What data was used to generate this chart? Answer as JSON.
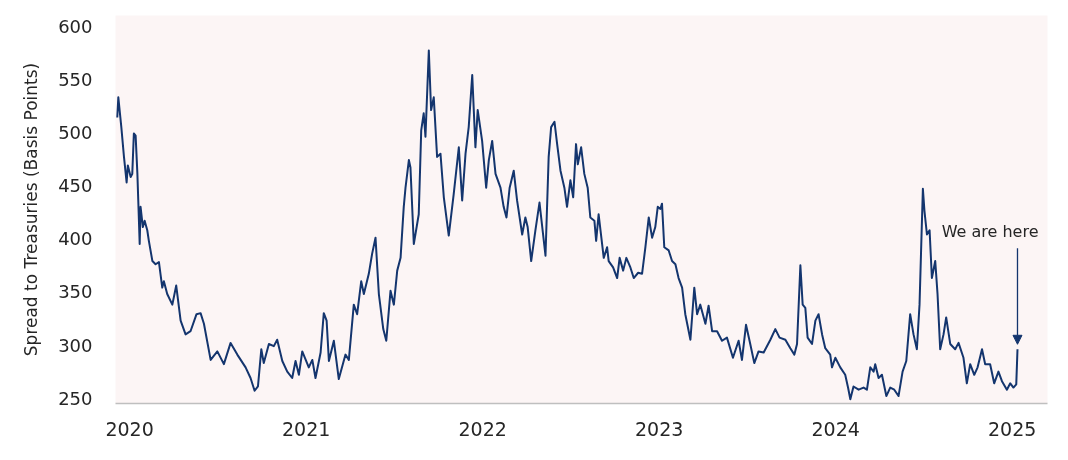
{
  "chart_data": {
    "type": "line",
    "ylabel": "Spread to Treasuries (Basis Points)",
    "x": [
      2019.93,
      2019.936,
      2019.953,
      2019.968,
      2019.983,
      2019.99,
      2020.006,
      2020.015,
      2020.024,
      2020.034,
      2020.044,
      2020.049,
      2020.057,
      2020.062,
      2020.075,
      2020.085,
      2020.1,
      2020.109,
      2020.129,
      2020.147,
      2020.166,
      2020.185,
      2020.194,
      2020.213,
      2020.242,
      2020.264,
      2020.289,
      2020.317,
      2020.345,
      2020.379,
      2020.402,
      2020.421,
      2020.459,
      2020.497,
      2020.534,
      2020.572,
      2020.61,
      2020.657,
      2020.685,
      2020.708,
      2020.727,
      2020.746,
      2020.76,
      2020.789,
      2020.817,
      2020.836,
      2020.865,
      2020.893,
      2020.921,
      2020.94,
      2020.959,
      2020.978,
      2021.015,
      2021.035,
      2021.053,
      2021.082,
      2021.1,
      2021.116,
      2021.129,
      2021.157,
      2021.185,
      2021.223,
      2021.242,
      2021.27,
      2021.289,
      2021.312,
      2021.327,
      2021.355,
      2021.374,
      2021.393,
      2021.412,
      2021.437,
      2021.454,
      2021.478,
      2021.497,
      2021.516,
      2021.535,
      2021.553,
      2021.563,
      2021.582,
      2021.591,
      2021.61,
      2021.638,
      2021.652,
      2021.666,
      2021.676,
      2021.695,
      2021.708,
      2021.723,
      2021.742,
      2021.761,
      2021.78,
      2021.808,
      2021.836,
      2021.865,
      2021.884,
      2021.903,
      2021.921,
      2021.941,
      2021.959,
      2021.972,
      2021.997,
      2022.02,
      2022.035,
      2022.054,
      2022.073,
      2022.101,
      2022.119,
      2022.135,
      2022.153,
      2022.176,
      2022.195,
      2022.224,
      2022.242,
      2022.255,
      2022.275,
      2022.299,
      2022.322,
      2022.356,
      2022.374,
      2022.388,
      2022.407,
      2022.422,
      2022.441,
      2022.463,
      2022.478,
      2022.497,
      2022.513,
      2022.529,
      2022.539,
      2022.558,
      2022.576,
      2022.595,
      2022.61,
      2022.633,
      2022.643,
      2022.657,
      2022.686,
      2022.705,
      2022.714,
      2022.739,
      2022.762,
      2022.776,
      2022.796,
      2022.814,
      2022.837,
      2022.856,
      2022.881,
      2022.903,
      2022.922,
      2022.941,
      2022.96,
      2022.978,
      2022.992,
      2023.007,
      2023.016,
      2023.029,
      2023.054,
      2023.073,
      2023.092,
      2023.11,
      2023.13,
      2023.148,
      2023.177,
      2023.199,
      2023.215,
      2023.233,
      2023.262,
      2023.28,
      2023.3,
      2023.328,
      2023.356,
      2023.384,
      2023.418,
      2023.45,
      2023.469,
      2023.492,
      2023.516,
      2023.539,
      2023.563,
      2023.592,
      2023.63,
      2023.658,
      2023.682,
      2023.715,
      2023.743,
      2023.766,
      2023.781,
      2023.8,
      2023.813,
      2023.828,
      2023.841,
      2023.866,
      2023.885,
      2023.903,
      2023.923,
      2023.941,
      2023.969,
      2023.979,
      2023.998,
      2024.026,
      2024.054,
      2024.07,
      2024.083,
      2024.101,
      2024.13,
      2024.158,
      2024.177,
      2024.196,
      2024.215,
      2024.224,
      2024.243,
      2024.262,
      2024.287,
      2024.309,
      2024.332,
      2024.356,
      2024.379,
      2024.4,
      2024.422,
      2024.441,
      2024.46,
      2024.475,
      2024.494,
      2024.503,
      2024.517,
      2024.532,
      2024.545,
      2024.564,
      2024.577,
      2024.592,
      2024.611,
      2024.626,
      2024.649,
      2024.677,
      2024.696,
      2024.724,
      2024.743,
      2024.762,
      2024.785,
      2024.804,
      2024.829,
      2024.847,
      2024.875,
      2024.898,
      2024.922,
      2024.942,
      2024.97,
      2024.989,
      2025.007,
      2025.023,
      2025.03
    ],
    "series": [
      {
        "color": "#14356e",
        "values": [
          514,
          533,
          505,
          477,
          453,
          469,
          458,
          461,
          499,
          497,
          461,
          436,
          395,
          430,
          411,
          417,
          408,
          398,
          379,
          376,
          378,
          354,
          360,
          348,
          338,
          356,
          323,
          310,
          313,
          329,
          330,
          320,
          286,
          294,
          282,
          302,
          291,
          279,
          269,
          257,
          261,
          296,
          283,
          301,
          299,
          305,
          285,
          275,
          269,
          285,
          272,
          294,
          279,
          286,
          269,
          293,
          330,
          323,
          285,
          304,
          268,
          291,
          286,
          338,
          329,
          360,
          348,
          367,
          386,
          401,
          348,
          315,
          304,
          351,
          338,
          370,
          382,
          430,
          448,
          474,
          467,
          395,
          423,
          502,
          518,
          496,
          577,
          521,
          533,
          477,
          480,
          439,
          403,
          442,
          486,
          436,
          480,
          505,
          554,
          486,
          521,
          492,
          448,
          474,
          492,
          461,
          448,
          430,
          420,
          448,
          464,
          436,
          404,
          420,
          411,
          379,
          408,
          434,
          384,
          477,
          505,
          510,
          489,
          464,
          448,
          430,
          455,
          439,
          489,
          470,
          486,
          461,
          448,
          420,
          417,
          398,
          423,
          382,
          392,
          379,
          373,
          363,
          382,
          370,
          382,
          373,
          363,
          368,
          367,
          392,
          420,
          401,
          411,
          430,
          428,
          433,
          392,
          389,
          379,
          376,
          363,
          354,
          329,
          305,
          354,
          329,
          338,
          320,
          337,
          313,
          313,
          304,
          307,
          288,
          304,
          286,
          319,
          301,
          283,
          294,
          293,
          305,
          315,
          307,
          305,
          297,
          291,
          301,
          375,
          338,
          335,
          307,
          301,
          323,
          329,
          310,
          297,
          291,
          279,
          288,
          279,
          272,
          260,
          249,
          261,
          258,
          260,
          258,
          279,
          275,
          282,
          269,
          272,
          252,
          260,
          258,
          252,
          275,
          285,
          329,
          310,
          296,
          338,
          447,
          426,
          404,
          408,
          363,
          379,
          348,
          296,
          310,
          326,
          301,
          296,
          302,
          288,
          264,
          282,
          272,
          279,
          296,
          282,
          282,
          264,
          275,
          266,
          258,
          264,
          260,
          263,
          296
        ]
      }
    ],
    "xlim": [
      2019.92,
      2025.2
    ],
    "xticks": [
      2020,
      2021,
      2022,
      2023,
      2024,
      2025
    ],
    "ylim": [
      245,
      610
    ],
    "yticks": [
      250,
      300,
      350,
      400,
      450,
      500,
      550,
      600
    ],
    "annotations": [
      {
        "text": "We are here",
        "x": 2025.03,
        "y": 296
      }
    ]
  }
}
